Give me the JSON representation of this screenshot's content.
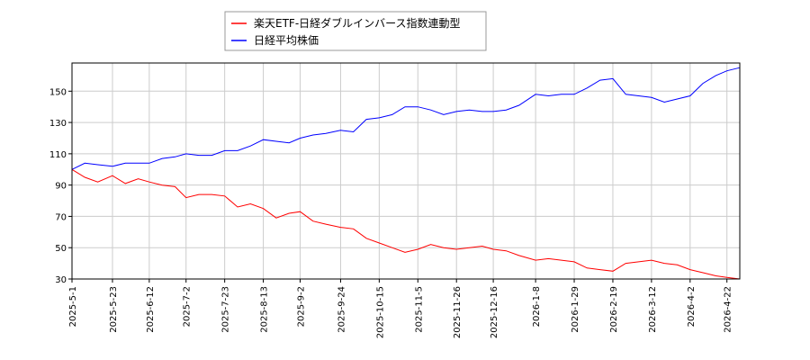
{
  "chart_data": {
    "type": "line",
    "x_dates": [
      "2025-05-01",
      "2025-05-08",
      "2025-05-15",
      "2025-05-23",
      "2025-05-30",
      "2025-06-06",
      "2025-06-12",
      "2025-06-19",
      "2025-06-26",
      "2025-07-02",
      "2025-07-09",
      "2025-07-16",
      "2025-07-23",
      "2025-07-30",
      "2025-08-06",
      "2025-08-13",
      "2025-08-20",
      "2025-08-27",
      "2025-09-02",
      "2025-09-09",
      "2025-09-16",
      "2025-09-24",
      "2025-10-01",
      "2025-10-08",
      "2025-10-15",
      "2025-10-22",
      "2025-10-29",
      "2025-11-05",
      "2025-11-12",
      "2025-11-19",
      "2025-11-26",
      "2025-12-03",
      "2025-12-10",
      "2025-12-16",
      "2025-12-23",
      "2025-12-30",
      "2026-01-08",
      "2026-01-15",
      "2026-01-22",
      "2026-01-29",
      "2026-02-05",
      "2026-02-12",
      "2026-02-19",
      "2026-02-26",
      "2026-03-05",
      "2026-03-12",
      "2026-03-19",
      "2026-03-26",
      "2026-04-02",
      "2026-04-09",
      "2026-04-16",
      "2026-04-22",
      "2026-04-29"
    ],
    "series": [
      {
        "name": "楽天ETF-日経ダブルインバース指数連動型",
        "color": "#ff0000",
        "values": [
          100,
          95,
          92,
          96,
          91,
          94,
          92,
          90,
          89,
          82,
          84,
          84,
          83,
          76,
          78,
          75,
          69,
          72,
          73,
          67,
          65,
          63,
          62,
          56,
          53,
          50,
          47,
          49,
          52,
          50,
          49,
          50,
          51,
          49,
          48,
          45,
          42,
          43,
          42,
          41,
          37,
          36,
          35,
          40,
          41,
          42,
          40,
          39,
          36,
          34,
          32,
          31,
          30
        ]
      },
      {
        "name": "日経平均株価",
        "color": "#0000ff",
        "values": [
          100,
          104,
          103,
          102,
          104,
          104,
          104,
          107,
          108,
          110,
          109,
          109,
          112,
          112,
          115,
          119,
          118,
          117,
          120,
          122,
          123,
          125,
          124,
          132,
          133,
          135,
          140,
          140,
          138,
          135,
          137,
          138,
          137,
          137,
          138,
          141,
          148,
          147,
          148,
          148,
          152,
          157,
          158,
          148,
          147,
          146,
          143,
          145,
          147,
          155,
          160,
          163,
          165
        ]
      }
    ],
    "x_tick_labels": [
      "2025-5-1",
      "2025-5-23",
      "2025-6-12",
      "2025-7-2",
      "2025-7-23",
      "2025-8-13",
      "2025-9-2",
      "2025-9-24",
      "2025-10-15",
      "2025-11-5",
      "2025-11-26",
      "2025-12-16",
      "2026-1-8",
      "2026-1-29",
      "2026-2-19",
      "2026-3-12",
      "2026-4-2",
      "2026-4-22"
    ],
    "y_ticks": [
      30,
      50,
      70,
      90,
      110,
      130,
      150
    ],
    "ylim": [
      30,
      168
    ],
    "legend_position": "top-center",
    "grid": true
  }
}
